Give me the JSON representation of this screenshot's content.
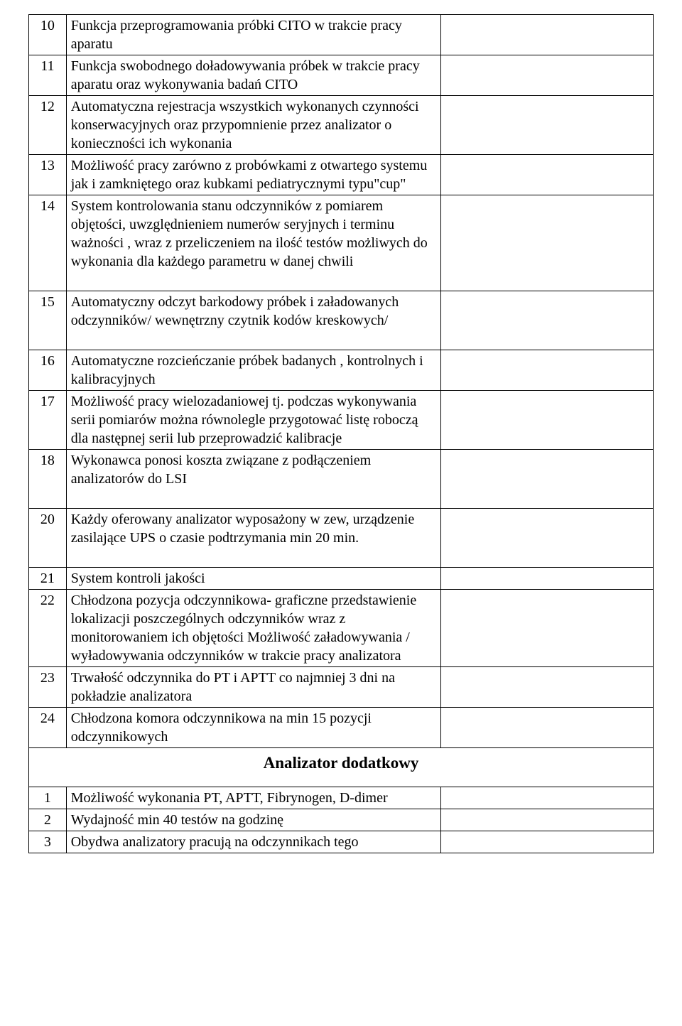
{
  "rows1": [
    {
      "num": "10",
      "desc": "Funkcja  przeprogramowania próbki CITO  w trakcie pracy aparatu"
    },
    {
      "num": "11",
      "desc": "Funkcja swobodnego doładowywania  próbek w trakcie pracy aparatu oraz wykonywania badań CITO"
    },
    {
      "num": "12",
      "desc": "Automatyczna rejestracja wszystkich wykonanych czynności konserwacyjnych oraz przypomnienie przez analizator o konieczności ich wykonania"
    },
    {
      "num": "13",
      "desc": "Możliwość pracy  zarówno z probówkami z otwartego systemu jak  i zamkniętego  oraz  kubkami pediatrycznymi typu\"cup\""
    },
    {
      "num": "14",
      "desc": "System kontrolowania stanu odczynników z pomiarem objętości, uwzględnieniem numerów seryjnych i terminu ważności , wraz z przeliczeniem na  ilość testów możliwych do wykonania  dla każdego parametru w danej chwili"
    }
  ],
  "rows2": [
    {
      "num": "15",
      "desc": "Automatyczny odczyt barkodowy próbek i załadowanych odczynników/ wewnętrzny  czytnik kodów kreskowych/"
    }
  ],
  "rows3": [
    {
      "num": "16",
      "desc": "Automatyczne rozcieńczanie próbek badanych , kontrolnych i kalibracyjnych"
    },
    {
      "num": "17",
      "desc": " Możliwość pracy wielozadaniowej tj. podczas wykonywania serii pomiarów można równolegle przygotować listę roboczą dla następnej serii lub przeprowadzić kalibracje"
    },
    {
      "num": "18",
      "desc": "Wykonawca ponosi koszta związane z podłączeniem analizatorów  do LSI"
    }
  ],
  "rows4": [
    {
      "num": "20",
      "desc": "Każdy  oferowany analizator wyposażony  w zew, urządzenie zasilające UPS o czasie podtrzymania min 20 min."
    }
  ],
  "rows5": [
    {
      "num": "21",
      "desc": "System kontroli jakości"
    },
    {
      "num": "22",
      "desc": "Chłodzona  pozycja odczynnikowa- graficzne przedstawienie lokalizacji poszczególnych odczynników wraz  z monitorowaniem ich objętości  Możliwość załadowywania / wyładowywania odczynników w trakcie pracy analizatora"
    },
    {
      "num": "23",
      "desc": "Trwałość odczynnika do PT i APTT co najmniej 3 dni na pokładzie analizatora"
    },
    {
      "num": "24",
      "desc": "Chłodzona komora odczynnikowa na min 15 pozycji odczynnikowych"
    }
  ],
  "sectionHeader": "Analizator dodatkowy",
  "rows6": [
    {
      "num": "1",
      "desc": "Możliwość wykonania PT, APTT,  Fibrynogen,  D-dimer"
    },
    {
      "num": "2",
      "desc": "Wydajność min 40 testów na godzinę"
    },
    {
      "num": "3",
      "desc": "Obydwa analizatory pracują na odczynnikach tego"
    }
  ]
}
